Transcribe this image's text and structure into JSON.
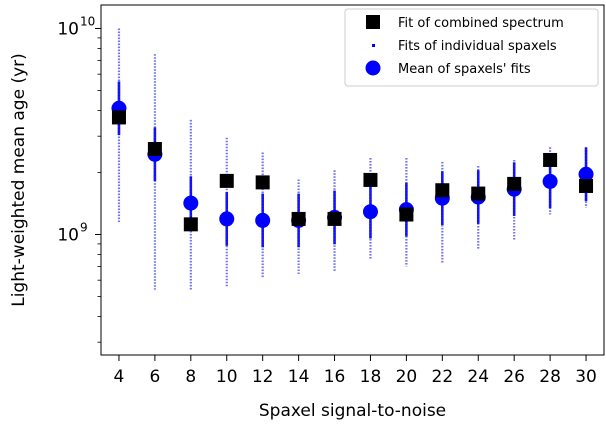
{
  "chart_data": {
    "type": "scatter",
    "xlabel": "Spaxel signal-to-noise",
    "ylabel": "Light-weighted mean age (yr)",
    "yscale": "log",
    "xlim": [
      3,
      31
    ],
    "ylim": [
      260000000,
      13000000000
    ],
    "x_ticks": [
      4,
      6,
      8,
      10,
      12,
      14,
      16,
      18,
      20,
      22,
      24,
      26,
      28,
      30
    ],
    "y_ticks": [
      {
        "value": 1000000000,
        "base": "10",
        "exp": "9"
      },
      {
        "value": 10000000000,
        "base": "10",
        "exp": "10"
      }
    ],
    "legend_position": "top-right",
    "grid": false,
    "series": [
      {
        "name": "Fit of combined spectrum",
        "marker": "square",
        "color": "#000000",
        "x": [
          4,
          6,
          8,
          10,
          12,
          14,
          16,
          18,
          20,
          22,
          24,
          26,
          28,
          30
        ],
        "y": [
          3700000000,
          2600000000,
          1120000000,
          1820000000,
          1790000000,
          1190000000,
          1190000000,
          1840000000,
          1250000000,
          1640000000,
          1580000000,
          1760000000,
          2300000000,
          1720000000
        ]
      },
      {
        "name": "Fits of individual spaxels",
        "marker": "dot",
        "color": "#0000ff",
        "x": [
          4,
          6,
          8,
          10,
          12,
          14,
          16,
          18,
          20,
          22,
          24,
          26,
          28,
          30
        ],
        "y_min": [
          1150000000,
          540000000,
          540000000,
          560000000,
          620000000,
          640000000,
          660000000,
          760000000,
          700000000,
          720000000,
          850000000,
          930000000,
          1250000000,
          1350000000
        ],
        "y_max": [
          10000000000,
          7500000000,
          3600000000,
          2950000000,
          2500000000,
          1850000000,
          2050000000,
          2350000000,
          2350000000,
          2250000000,
          2150000000,
          2300000000,
          2650000000,
          2650000000
        ]
      },
      {
        "name": "Mean of spaxels' fits",
        "marker": "circle",
        "color": "#0000ff",
        "x": [
          4,
          6,
          8,
          10,
          12,
          14,
          16,
          18,
          20,
          22,
          24,
          26,
          28,
          30
        ],
        "y": [
          4100000000,
          2450000000,
          1420000000,
          1190000000,
          1170000000,
          1170000000,
          1210000000,
          1290000000,
          1320000000,
          1500000000,
          1520000000,
          1660000000,
          1810000000,
          1960000000
        ]
      }
    ]
  }
}
